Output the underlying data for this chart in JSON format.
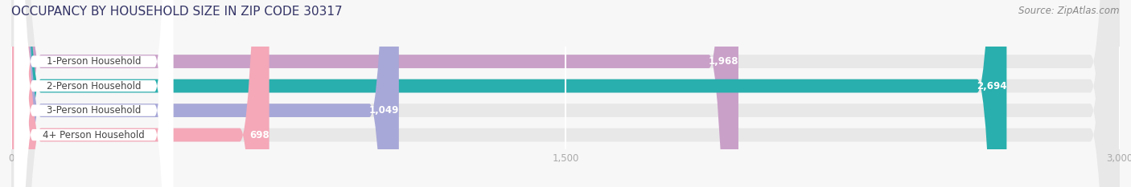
{
  "title": "OCCUPANCY BY HOUSEHOLD SIZE IN ZIP CODE 30317",
  "source": "Source: ZipAtlas.com",
  "categories": [
    "1-Person Household",
    "2-Person Household",
    "3-Person Household",
    "4+ Person Household"
  ],
  "values": [
    1968,
    2694,
    1049,
    698
  ],
  "bar_colors": [
    "#c9a0c8",
    "#29afad",
    "#a8a8d8",
    "#f4a8b8"
  ],
  "bar_bg_color": "#e8e8e8",
  "label_bg_color": "#ffffff",
  "xlim": [
    0,
    3000
  ],
  "xticks": [
    0,
    1500,
    3000
  ],
  "label_fontsize": 8.5,
  "value_fontsize": 8.5,
  "title_fontsize": 11,
  "source_fontsize": 8.5,
  "bar_height": 0.55,
  "background_color": "#f7f7f7",
  "label_text_color": "#444444",
  "value_text_color": "#555555",
  "title_color": "#333366",
  "grid_color": "#ffffff",
  "tick_color": "#aaaaaa"
}
